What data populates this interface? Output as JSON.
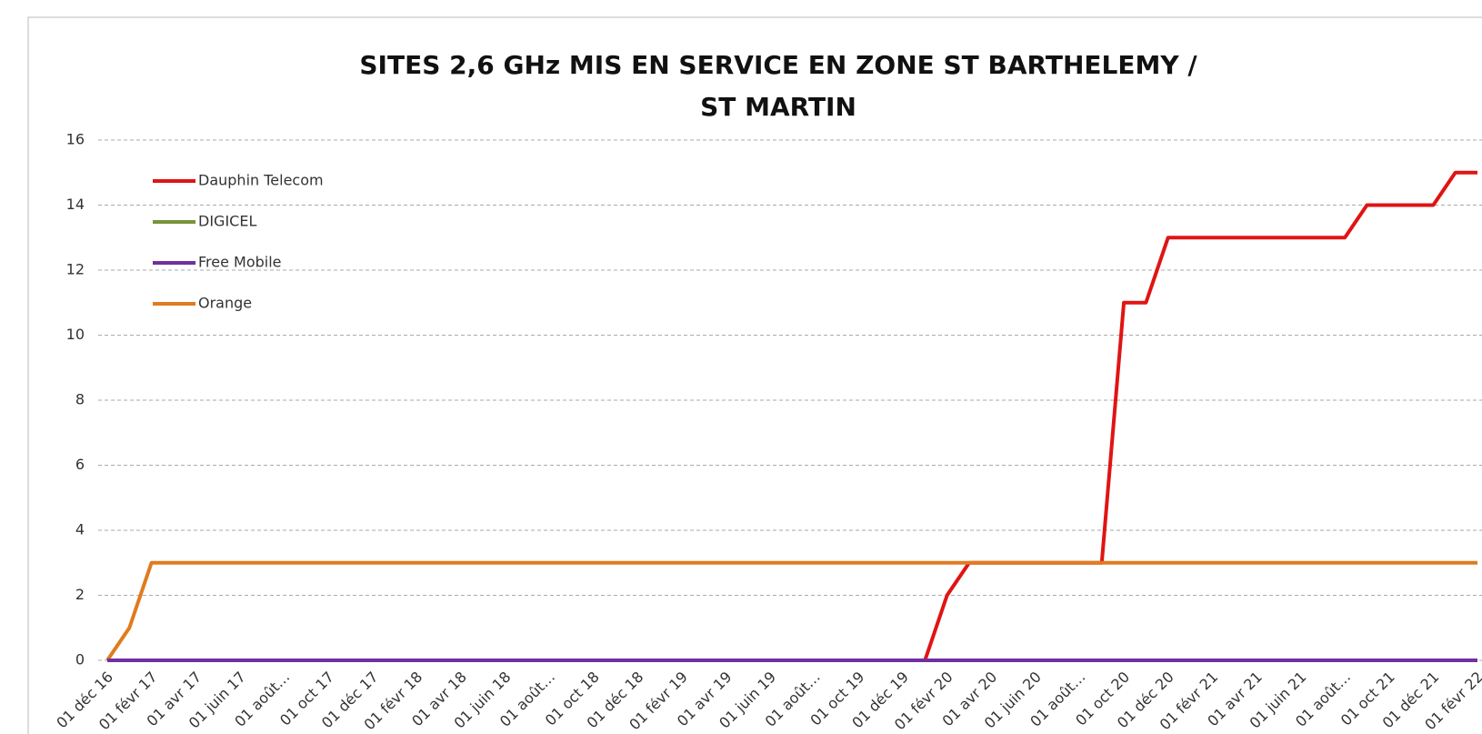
{
  "chart_data": {
    "type": "line",
    "title": [
      "SITES 2,6 GHz MIS EN SERVICE  EN ZONE ST BARTHELEMY /",
      "ST MARTIN"
    ],
    "categories": [
      "01 déc 16",
      null,
      "01 févr 17",
      null,
      "01 avr 17",
      null,
      "01 juin 17",
      null,
      "01 août…",
      null,
      "01 oct 17",
      null,
      "01 déc 17",
      null,
      "01 févr 18",
      null,
      "01 avr 18",
      null,
      "01 juin 18",
      null,
      "01 août…",
      null,
      "01 oct 18",
      null,
      "01 déc 18",
      null,
      "01 févr 19",
      null,
      "01 avr 19",
      null,
      "01 juin 19",
      null,
      "01 août…",
      null,
      "01 oct 19",
      null,
      "01 déc 19",
      null,
      "01 févr 20",
      null,
      "01 avr 20",
      null,
      "01 juin 20",
      null,
      "01 août…",
      null,
      "01 oct 20",
      null,
      "01 déc 20",
      null,
      "01 févr 21",
      null,
      "01 avr 21",
      null,
      "01 juin 21",
      null,
      "01 août…",
      null,
      "01 oct 21",
      null,
      "01 déc 21",
      null,
      "01 févr 22"
    ],
    "series": [
      {
        "name": "Dauphin Telecom",
        "color": "#e01414",
        "values": [
          0,
          0,
          0,
          0,
          0,
          0,
          0,
          0,
          0,
          0,
          0,
          0,
          0,
          0,
          0,
          0,
          0,
          0,
          0,
          0,
          0,
          0,
          0,
          0,
          0,
          0,
          0,
          0,
          0,
          0,
          0,
          0,
          0,
          0,
          0,
          0,
          0,
          0,
          2,
          3,
          3,
          3,
          3,
          3,
          3,
          3,
          11,
          11,
          13,
          13,
          13,
          13,
          13,
          13,
          13,
          13,
          13,
          14,
          14,
          14,
          14,
          15,
          15
        ]
      },
      {
        "name": "DIGICEL",
        "color": "#77933c",
        "values": [
          0,
          0,
          0,
          0,
          0,
          0,
          0,
          0,
          0,
          0,
          0,
          0,
          0,
          0,
          0,
          0,
          0,
          0,
          0,
          0,
          0,
          0,
          0,
          0,
          0,
          0,
          0,
          0,
          0,
          0,
          0,
          0,
          0,
          0,
          0,
          0,
          0,
          0,
          0,
          0,
          0,
          0,
          0,
          0,
          0,
          0,
          0,
          0,
          0,
          0,
          0,
          0,
          0,
          0,
          0,
          0,
          0,
          0,
          0,
          0,
          0,
          0,
          0
        ]
      },
      {
        "name": "Free Mobile",
        "color": "#7030a0",
        "values": [
          0,
          0,
          0,
          0,
          0,
          0,
          0,
          0,
          0,
          0,
          0,
          0,
          0,
          0,
          0,
          0,
          0,
          0,
          0,
          0,
          0,
          0,
          0,
          0,
          0,
          0,
          0,
          0,
          0,
          0,
          0,
          0,
          0,
          0,
          0,
          0,
          0,
          0,
          0,
          0,
          0,
          0,
          0,
          0,
          0,
          0,
          0,
          0,
          0,
          0,
          0,
          0,
          0,
          0,
          0,
          0,
          0,
          0,
          0,
          0,
          0,
          0,
          0
        ]
      },
      {
        "name": "Orange",
        "color": "#e07b20",
        "values": [
          0,
          1,
          3,
          3,
          3,
          3,
          3,
          3,
          3,
          3,
          3,
          3,
          3,
          3,
          3,
          3,
          3,
          3,
          3,
          3,
          3,
          3,
          3,
          3,
          3,
          3,
          3,
          3,
          3,
          3,
          3,
          3,
          3,
          3,
          3,
          3,
          3,
          3,
          3,
          3,
          3,
          3,
          3,
          3,
          3,
          3,
          3,
          3,
          3,
          3,
          3,
          3,
          3,
          3,
          3,
          3,
          3,
          3,
          3,
          3,
          3,
          3,
          3
        ]
      }
    ],
    "ylim": [
      0,
      16
    ],
    "yticks": [
      0,
      2,
      4,
      6,
      8,
      10,
      12,
      14,
      16
    ],
    "grid": true,
    "legend": "top-left"
  }
}
